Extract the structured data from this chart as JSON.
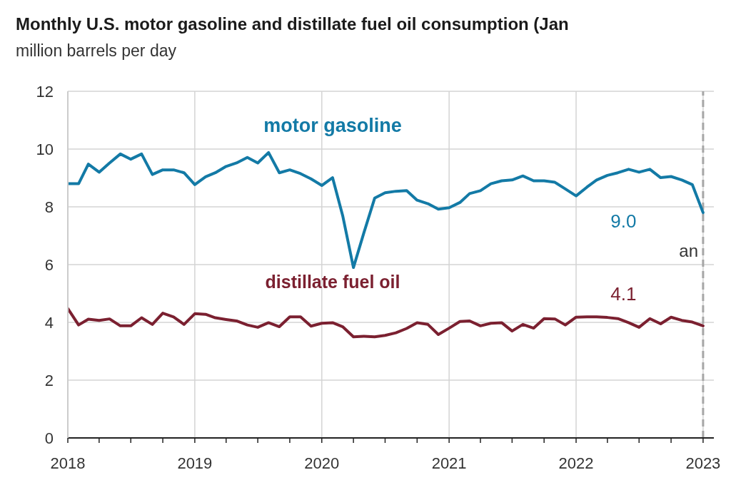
{
  "chart_data": {
    "type": "line",
    "title": "Monthly U.S. motor gasoline and distillate fuel oil consumption (Jan",
    "subtitle": "million barrels per day",
    "x": [
      "2018-01",
      "2018-02",
      "2018-03",
      "2018-04",
      "2018-05",
      "2018-06",
      "2018-07",
      "2018-08",
      "2018-09",
      "2018-10",
      "2018-11",
      "2018-12",
      "2019-01",
      "2019-02",
      "2019-03",
      "2019-04",
      "2019-05",
      "2019-06",
      "2019-07",
      "2019-08",
      "2019-09",
      "2019-10",
      "2019-11",
      "2019-12",
      "2020-01",
      "2020-02",
      "2020-03",
      "2020-04",
      "2020-05",
      "2020-06",
      "2020-07",
      "2020-08",
      "2020-09",
      "2020-10",
      "2020-11",
      "2020-12",
      "2021-01",
      "2021-02",
      "2021-03",
      "2021-04",
      "2021-05",
      "2021-06",
      "2021-07",
      "2021-08",
      "2021-09",
      "2021-10",
      "2021-11",
      "2021-12",
      "2022-01",
      "2022-02",
      "2022-03",
      "2022-04",
      "2022-05",
      "2022-06",
      "2022-07",
      "2022-08",
      "2022-09",
      "2022-10",
      "2022-11",
      "2022-12",
      "2023-01"
    ],
    "series": [
      {
        "name": "motor gasoline",
        "color": "#137aa6",
        "values": [
          8.8,
          8.8,
          9.48,
          9.2,
          9.52,
          9.83,
          9.65,
          9.83,
          9.12,
          9.28,
          9.28,
          9.18,
          8.77,
          9.04,
          9.18,
          9.4,
          9.52,
          9.71,
          9.52,
          9.88,
          9.18,
          9.28,
          9.15,
          8.97,
          8.74,
          9.01,
          7.7,
          5.9,
          7.1,
          8.3,
          8.49,
          8.54,
          8.56,
          8.23,
          8.11,
          7.92,
          7.97,
          8.15,
          8.46,
          8.56,
          8.8,
          8.9,
          8.93,
          9.07,
          8.9,
          8.9,
          8.85,
          8.62,
          8.38,
          8.68,
          8.93,
          9.09,
          9.18,
          9.3,
          9.2,
          9.3,
          9.01,
          9.05,
          8.93,
          8.77,
          7.8
        ]
      },
      {
        "name": "distillate fuel oil",
        "color": "#7b2030",
        "values": [
          4.48,
          3.91,
          4.11,
          4.07,
          4.12,
          3.88,
          3.88,
          4.16,
          3.93,
          4.32,
          4.19,
          3.93,
          4.3,
          4.28,
          4.16,
          4.1,
          4.05,
          3.91,
          3.83,
          3.99,
          3.85,
          4.19,
          4.19,
          3.87,
          3.97,
          3.99,
          3.85,
          3.5,
          3.52,
          3.5,
          3.55,
          3.64,
          3.79,
          3.99,
          3.93,
          3.58,
          3.8,
          4.03,
          4.05,
          3.88,
          3.97,
          3.99,
          3.7,
          3.93,
          3.8,
          4.13,
          4.12,
          3.91,
          4.18,
          4.19,
          4.19,
          4.17,
          4.13,
          3.99,
          3.83,
          4.13,
          3.95,
          4.18,
          4.07,
          4.01,
          3.88
        ]
      }
    ],
    "xlim": [
      "2018-01",
      "2023-02"
    ],
    "xticks": [
      {
        "value": "2018-01",
        "label": "2018"
      },
      {
        "value": "2018-04",
        "label": null
      },
      {
        "value": "2018-07",
        "label": null
      },
      {
        "value": "2018-10",
        "label": null
      },
      {
        "value": "2019-01",
        "label": "2019"
      },
      {
        "value": "2019-04",
        "label": null
      },
      {
        "value": "2019-07",
        "label": null
      },
      {
        "value": "2019-10",
        "label": null
      },
      {
        "value": "2020-01",
        "label": "2020"
      },
      {
        "value": "2020-04",
        "label": null
      },
      {
        "value": "2020-07",
        "label": null
      },
      {
        "value": "2020-10",
        "label": null
      },
      {
        "value": "2021-01",
        "label": "2021"
      },
      {
        "value": "2021-04",
        "label": null
      },
      {
        "value": "2021-07",
        "label": null
      },
      {
        "value": "2021-10",
        "label": null
      },
      {
        "value": "2022-01",
        "label": "2022"
      },
      {
        "value": "2022-04",
        "label": null
      },
      {
        "value": "2022-07",
        "label": null
      },
      {
        "value": "2022-10",
        "label": null
      },
      {
        "value": "2023-01",
        "label": "2023"
      }
    ],
    "ylim": [
      0,
      12
    ],
    "yticks": [
      0,
      2,
      4,
      6,
      8,
      10,
      12
    ],
    "grid": true,
    "legend": false,
    "marker": "none",
    "line_style": "solid",
    "ref_lines": [
      {
        "axis": "x",
        "value": "2023-01",
        "color": "#a6a6a6",
        "line_style": "dashed"
      }
    ],
    "annotations": [
      "9.0",
      "4.1",
      "an"
    ]
  }
}
